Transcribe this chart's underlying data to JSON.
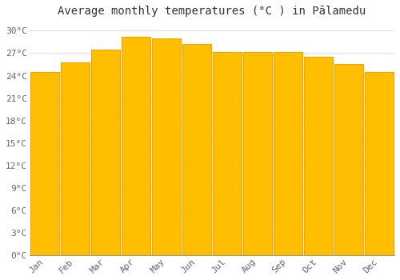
{
  "title": "Average monthly temperatures (°C ) in Pālamedu",
  "months": [
    "Jan",
    "Feb",
    "Mar",
    "Apr",
    "May",
    "Jun",
    "Jul",
    "Aug",
    "Sep",
    "Oct",
    "Nov",
    "Dec"
  ],
  "temperatures": [
    24.5,
    25.8,
    27.5,
    29.2,
    29.0,
    28.2,
    27.2,
    27.2,
    27.2,
    26.5,
    25.5,
    24.5
  ],
  "bar_color_face": "#FFBE00",
  "bar_color_edge": "#F0A500",
  "background_color": "#FFFFFF",
  "grid_color": "#DDDDDD",
  "ylim": [
    0,
    31
  ],
  "yticks": [
    0,
    3,
    6,
    9,
    12,
    15,
    18,
    21,
    24,
    27,
    30
  ],
  "ytick_labels": [
    "0°C",
    "3°C",
    "6°C",
    "9°C",
    "12°C",
    "15°C",
    "18°C",
    "21°C",
    "24°C",
    "27°C",
    "30°C"
  ],
  "title_fontsize": 10,
  "tick_fontsize": 8,
  "title_color": "#333333",
  "tick_color": "#666666",
  "bar_width": 0.95
}
